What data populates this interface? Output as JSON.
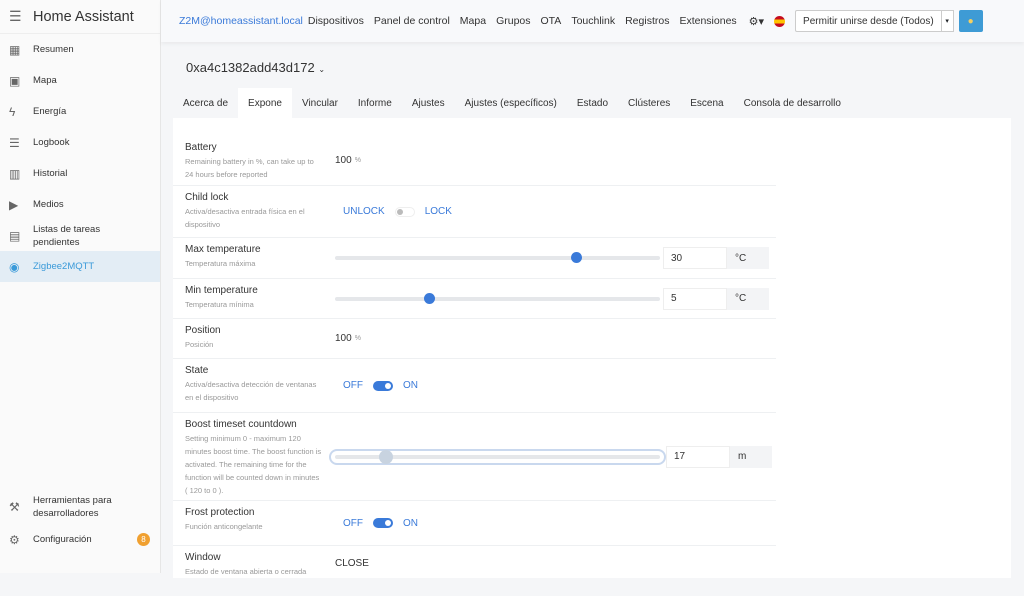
{
  "sidebar": {
    "title": "Home Assistant",
    "items": [
      {
        "label": "Resumen",
        "icon": "dashboard-icon"
      },
      {
        "label": "Mapa",
        "icon": "map-icon"
      },
      {
        "label": "Energía",
        "icon": "lightning-icon"
      },
      {
        "label": "Logbook",
        "icon": "list-icon"
      },
      {
        "label": "Historial",
        "icon": "chart-icon"
      },
      {
        "label": "Medios",
        "icon": "media-icon"
      },
      {
        "label": "Listas de tareas pendientes",
        "icon": "clipboard-icon"
      },
      {
        "label": "Zigbee2MQTT",
        "icon": "zigbee-icon",
        "active": true
      }
    ],
    "bottom": [
      {
        "label": "Herramientas para desarrolladores",
        "icon": "hammer-icon"
      },
      {
        "label": "Configuración",
        "icon": "gear-icon",
        "badge": "8"
      }
    ]
  },
  "topnav": {
    "brand": "Z2M@homeassistant.local",
    "links": [
      "Dispositivos",
      "Panel de control",
      "Mapa",
      "Grupos",
      "OTA",
      "Touchlink",
      "Registros",
      "Extensiones"
    ],
    "permit": "Permitir unirse desde (Todos)"
  },
  "device": {
    "name": "0xa4c1382add43d172"
  },
  "tabs": [
    "Acerca de",
    "Expone",
    "Vincular",
    "Informe",
    "Ajustes",
    "Ajustes (específicos)",
    "Estado",
    "Clústeres",
    "Escena",
    "Consola de desarrollo"
  ],
  "active_tab": "Expone",
  "rows": {
    "battery": {
      "name": "Battery",
      "desc": "Remaining battery in %, can take up to 24 hours before reported",
      "value": "100",
      "unit": "%"
    },
    "child_lock": {
      "name": "Child lock",
      "desc": "Activa/desactiva entrada física en el dispositivo",
      "off": "UNLOCK",
      "on": "LOCK",
      "state": "off"
    },
    "max_temp": {
      "name": "Max temperature",
      "desc": "Temperatura máxima",
      "value": "30",
      "unit": "°C",
      "slider_fraction": 0.74
    },
    "min_temp": {
      "name": "Min temperature",
      "desc": "Temperatura mínima",
      "value": "5",
      "unit": "°C",
      "slider_fraction": 0.29
    },
    "position": {
      "name": "Position",
      "desc": "Posición",
      "value": "100",
      "unit": "%"
    },
    "state": {
      "name": "State",
      "desc": "Activa/desactiva detección de ventanas en el dispositivo",
      "off": "OFF",
      "on": "ON",
      "state": "on"
    },
    "boost": {
      "name": "Boost timeset countdown",
      "desc": "Setting minimum 0 - maximum 120 minutes boost time. The boost function is activated. The remaining time for the function will be counted down in minutes ( 120 to 0 ).",
      "value": "17",
      "unit": "m",
      "slider_fraction": 0.157
    },
    "frost": {
      "name": "Frost protection",
      "desc": "Función anticongelante",
      "off": "OFF",
      "on": "ON",
      "state": "on"
    },
    "window": {
      "name": "Window",
      "desc": "Estado de ventana abierta o cerrada",
      "value": "CLOSE"
    }
  },
  "colors": {
    "accent": "#3a7ad9",
    "badge": "#f0a030"
  }
}
